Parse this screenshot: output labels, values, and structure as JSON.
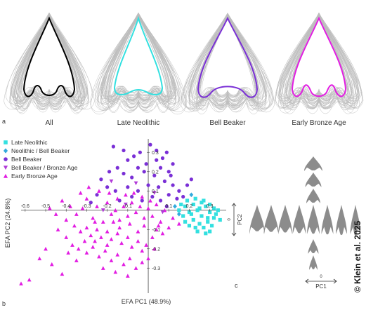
{
  "panel_a": {
    "letter": "a",
    "shapes": [
      {
        "label": "All",
        "color": "#000000"
      },
      {
        "label": "Late Neolithic",
        "color": "#33e0e0"
      },
      {
        "label": "Bell Beaker",
        "color": "#7a2fd6"
      },
      {
        "label": "Early Bronze Age",
        "color": "#e21de2"
      }
    ]
  },
  "panel_b": {
    "letter": "b",
    "legend": [
      {
        "label": "Late Neolithic",
        "marker": "square",
        "color": "#33e0e0"
      },
      {
        "label": "Neolithic / Bell Beaker",
        "marker": "diamond",
        "color": "#33aadd"
      },
      {
        "label": "Bell Beaker",
        "marker": "circle",
        "color": "#7a2fd6"
      },
      {
        "label": "Bell Beaker / Bronze Age",
        "marker": "triangle-down",
        "color": "#b03ad8"
      },
      {
        "label": "Early Bronze Age",
        "marker": "triangle-up",
        "color": "#e21de2"
      }
    ]
  },
  "panel_c": {
    "letter": "c",
    "y_label": "PC2",
    "x_label": "PC1",
    "axis_zero": "0"
  },
  "copyright": "© Klein et al. 2025",
  "chart_data": {
    "type": "scatter",
    "xlabel": "EFA PC1 (48.9%)",
    "ylabel": "EFA PC2 (24.8%)",
    "xlim": [
      -0.62,
      0.38
    ],
    "ylim": [
      -0.43,
      0.37
    ],
    "x_ticks": [
      "-0.6",
      "-0.5",
      "-0.4",
      "-0.3",
      "-0.2",
      "-0.1",
      "0.1",
      "0.2",
      "0.3"
    ],
    "y_ticks": [
      "0.3",
      "0.2",
      "0.1",
      "-0.1",
      "-0.2",
      "-0.3"
    ],
    "series": [
      {
        "name": "Late Neolithic",
        "marker": "square",
        "color": "#33e0e0",
        "points": [
          [
            0.18,
            0.02
          ],
          [
            0.2,
            -0.01
          ],
          [
            0.22,
            0.03
          ],
          [
            0.24,
            0.0
          ],
          [
            0.26,
            -0.03
          ],
          [
            0.28,
            0.02
          ],
          [
            0.3,
            -0.01
          ],
          [
            0.32,
            -0.04
          ],
          [
            0.25,
            -0.07
          ],
          [
            0.27,
            -0.09
          ],
          [
            0.29,
            -0.06
          ],
          [
            0.31,
            -0.08
          ],
          [
            0.33,
            -0.02
          ],
          [
            0.22,
            -0.05
          ],
          [
            0.2,
            -0.08
          ],
          [
            0.17,
            -0.03
          ],
          [
            0.15,
            0.0
          ],
          [
            0.19,
            0.05
          ],
          [
            0.23,
            0.06
          ],
          [
            0.26,
            0.04
          ],
          [
            0.3,
            0.03
          ],
          [
            0.34,
            0.0
          ],
          [
            0.28,
            -0.12
          ],
          [
            0.3,
            -0.11
          ],
          [
            0.24,
            -0.11
          ],
          [
            0.21,
            -0.02
          ],
          [
            0.25,
            0.01
          ],
          [
            0.29,
            -0.04
          ],
          [
            0.32,
            0.01
          ],
          [
            0.18,
            -0.06
          ],
          [
            0.27,
            0.05
          ],
          [
            0.23,
            -0.09
          ],
          [
            0.35,
            -0.05
          ],
          [
            0.16,
            0.03
          ]
        ]
      },
      {
        "name": "Neolithic / Bell Beaker",
        "marker": "diamond",
        "color": "#33aadd",
        "points": [
          [
            0.13,
            0.02
          ],
          [
            0.15,
            -0.02
          ],
          [
            0.21,
            0.08
          ]
        ]
      },
      {
        "name": "Bell Beaker",
        "marker": "circle",
        "color": "#7a2fd6",
        "points": [
          [
            -0.17,
            0.33
          ],
          [
            -0.12,
            0.31
          ],
          [
            -0.1,
            0.26
          ],
          [
            -0.07,
            0.28
          ],
          [
            -0.04,
            0.3
          ],
          [
            0.01,
            0.34
          ],
          [
            0.04,
            0.31
          ],
          [
            0.07,
            0.27
          ],
          [
            0.09,
            0.3
          ],
          [
            0.12,
            0.24
          ],
          [
            0.1,
            0.2
          ],
          [
            0.06,
            0.22
          ],
          [
            0.03,
            0.18
          ],
          [
            -0.02,
            0.2
          ],
          [
            -0.05,
            0.22
          ],
          [
            -0.08,
            0.17
          ],
          [
            -0.12,
            0.19
          ],
          [
            -0.15,
            0.22
          ],
          [
            -0.19,
            0.2
          ],
          [
            -0.23,
            0.16
          ],
          [
            -0.2,
            0.12
          ],
          [
            -0.16,
            0.1
          ],
          [
            -0.1,
            0.12
          ],
          [
            -0.05,
            0.1
          ],
          [
            0.0,
            0.13
          ],
          [
            0.05,
            0.12
          ],
          [
            0.08,
            0.15
          ],
          [
            0.12,
            0.13
          ],
          [
            0.15,
            0.1
          ],
          [
            0.17,
            0.07
          ],
          [
            0.14,
            0.06
          ],
          [
            0.1,
            0.08
          ],
          [
            0.06,
            0.05
          ],
          [
            0.02,
            0.07
          ],
          [
            -0.03,
            0.05
          ],
          [
            -0.08,
            0.07
          ],
          [
            -0.14,
            0.05
          ],
          [
            -0.25,
            0.08
          ],
          [
            -0.28,
            0.04
          ],
          [
            0.19,
            0.13
          ],
          [
            0.21,
            0.16
          ],
          [
            0.09,
            0.02
          ],
          [
            0.04,
            0.26
          ],
          [
            -0.01,
            0.24
          ],
          [
            0.11,
            0.18
          ]
        ]
      },
      {
        "name": "Bell Beaker / Bronze Age",
        "marker": "triangle-down",
        "color": "#b03ad8",
        "points": [
          [
            -0.18,
            0.15
          ],
          [
            -0.06,
            0.14
          ],
          [
            0.03,
            0.09
          ],
          [
            -0.11,
            0.03
          ],
          [
            0.07,
            -0.01
          ],
          [
            -0.22,
            0.0
          ]
        ]
      },
      {
        "name": "Early Bronze Age",
        "marker": "triangle-up",
        "color": "#e21de2",
        "points": [
          [
            -0.42,
            0.05
          ],
          [
            -0.38,
            0.02
          ],
          [
            -0.35,
            -0.02
          ],
          [
            -0.32,
            0.01
          ],
          [
            -0.3,
            0.06
          ],
          [
            -0.27,
            -0.04
          ],
          [
            -0.25,
            0.02
          ],
          [
            -0.22,
            -0.06
          ],
          [
            -0.2,
            0.04
          ],
          [
            -0.18,
            -0.02
          ],
          [
            -0.16,
            0.0
          ],
          [
            -0.14,
            -0.05
          ],
          [
            -0.12,
            0.02
          ],
          [
            -0.1,
            -0.03
          ],
          [
            -0.08,
            0.04
          ],
          [
            -0.06,
            -0.01
          ],
          [
            -0.04,
            0.02
          ],
          [
            -0.02,
            -0.04
          ],
          [
            0.0,
            0.01
          ],
          [
            0.02,
            -0.03
          ],
          [
            0.04,
            0.03
          ],
          [
            0.06,
            -0.06
          ],
          [
            0.08,
            0.0
          ],
          [
            -0.36,
            -0.08
          ],
          [
            -0.33,
            -0.11
          ],
          [
            -0.3,
            -0.09
          ],
          [
            -0.28,
            -0.13
          ],
          [
            -0.25,
            -0.1
          ],
          [
            -0.23,
            -0.14
          ],
          [
            -0.2,
            -0.11
          ],
          [
            -0.18,
            -0.15
          ],
          [
            -0.15,
            -0.12
          ],
          [
            -0.13,
            -0.17
          ],
          [
            -0.1,
            -0.14
          ],
          [
            -0.08,
            -0.19
          ],
          [
            -0.05,
            -0.16
          ],
          [
            -0.03,
            -0.21
          ],
          [
            -0.01,
            -0.18
          ],
          [
            0.02,
            -0.14
          ],
          [
            0.04,
            -0.1
          ],
          [
            -0.4,
            -0.05
          ],
          [
            -0.45,
            -0.02
          ],
          [
            -0.48,
            0.01
          ],
          [
            -0.44,
            -0.1
          ],
          [
            -0.4,
            -0.14
          ],
          [
            -0.37,
            -0.18
          ],
          [
            -0.34,
            -0.2
          ],
          [
            -0.3,
            -0.22
          ],
          [
            -0.27,
            -0.19
          ],
          [
            -0.24,
            -0.24
          ],
          [
            -0.21,
            -0.21
          ],
          [
            -0.18,
            -0.26
          ],
          [
            -0.15,
            -0.23
          ],
          [
            -0.12,
            -0.28
          ],
          [
            -0.09,
            -0.25
          ],
          [
            -0.06,
            -0.3
          ],
          [
            -0.03,
            -0.27
          ],
          [
            -0.11,
            0.08
          ],
          [
            -0.15,
            0.06
          ],
          [
            -0.19,
            0.09
          ],
          [
            -0.24,
            0.1
          ],
          [
            -0.29,
            0.12
          ],
          [
            -0.33,
            0.09
          ],
          [
            -0.07,
            0.09
          ],
          [
            -0.03,
            0.07
          ],
          [
            0.01,
            0.05
          ],
          [
            0.05,
            -0.08
          ],
          [
            0.07,
            -0.12
          ],
          [
            0.1,
            -0.09
          ],
          [
            -0.5,
            -0.2
          ],
          [
            -0.53,
            -0.25
          ],
          [
            -0.47,
            -0.28
          ],
          [
            -0.58,
            -0.36
          ],
          [
            -0.42,
            -0.33
          ],
          [
            -0.62,
            -0.38
          ],
          [
            -0.22,
            -0.3
          ],
          [
            -0.16,
            -0.32
          ],
          [
            -0.1,
            -0.34
          ],
          [
            -0.26,
            -0.06
          ],
          [
            -0.31,
            -0.16
          ],
          [
            -0.35,
            -0.26
          ],
          [
            -0.39,
            -0.22
          ],
          [
            0.12,
            -0.04
          ],
          [
            0.15,
            -0.07
          ],
          [
            -0.02,
            -0.08
          ],
          [
            -0.05,
            -0.11
          ],
          [
            -0.09,
            -0.07
          ],
          [
            -0.2,
            -0.18
          ],
          [
            -0.26,
            -0.16
          ],
          [
            -0.14,
            -0.09
          ],
          [
            -0.17,
            -0.06
          ],
          [
            0.0,
            -0.25
          ],
          [
            0.03,
            -0.2
          ]
        ]
      }
    ]
  }
}
